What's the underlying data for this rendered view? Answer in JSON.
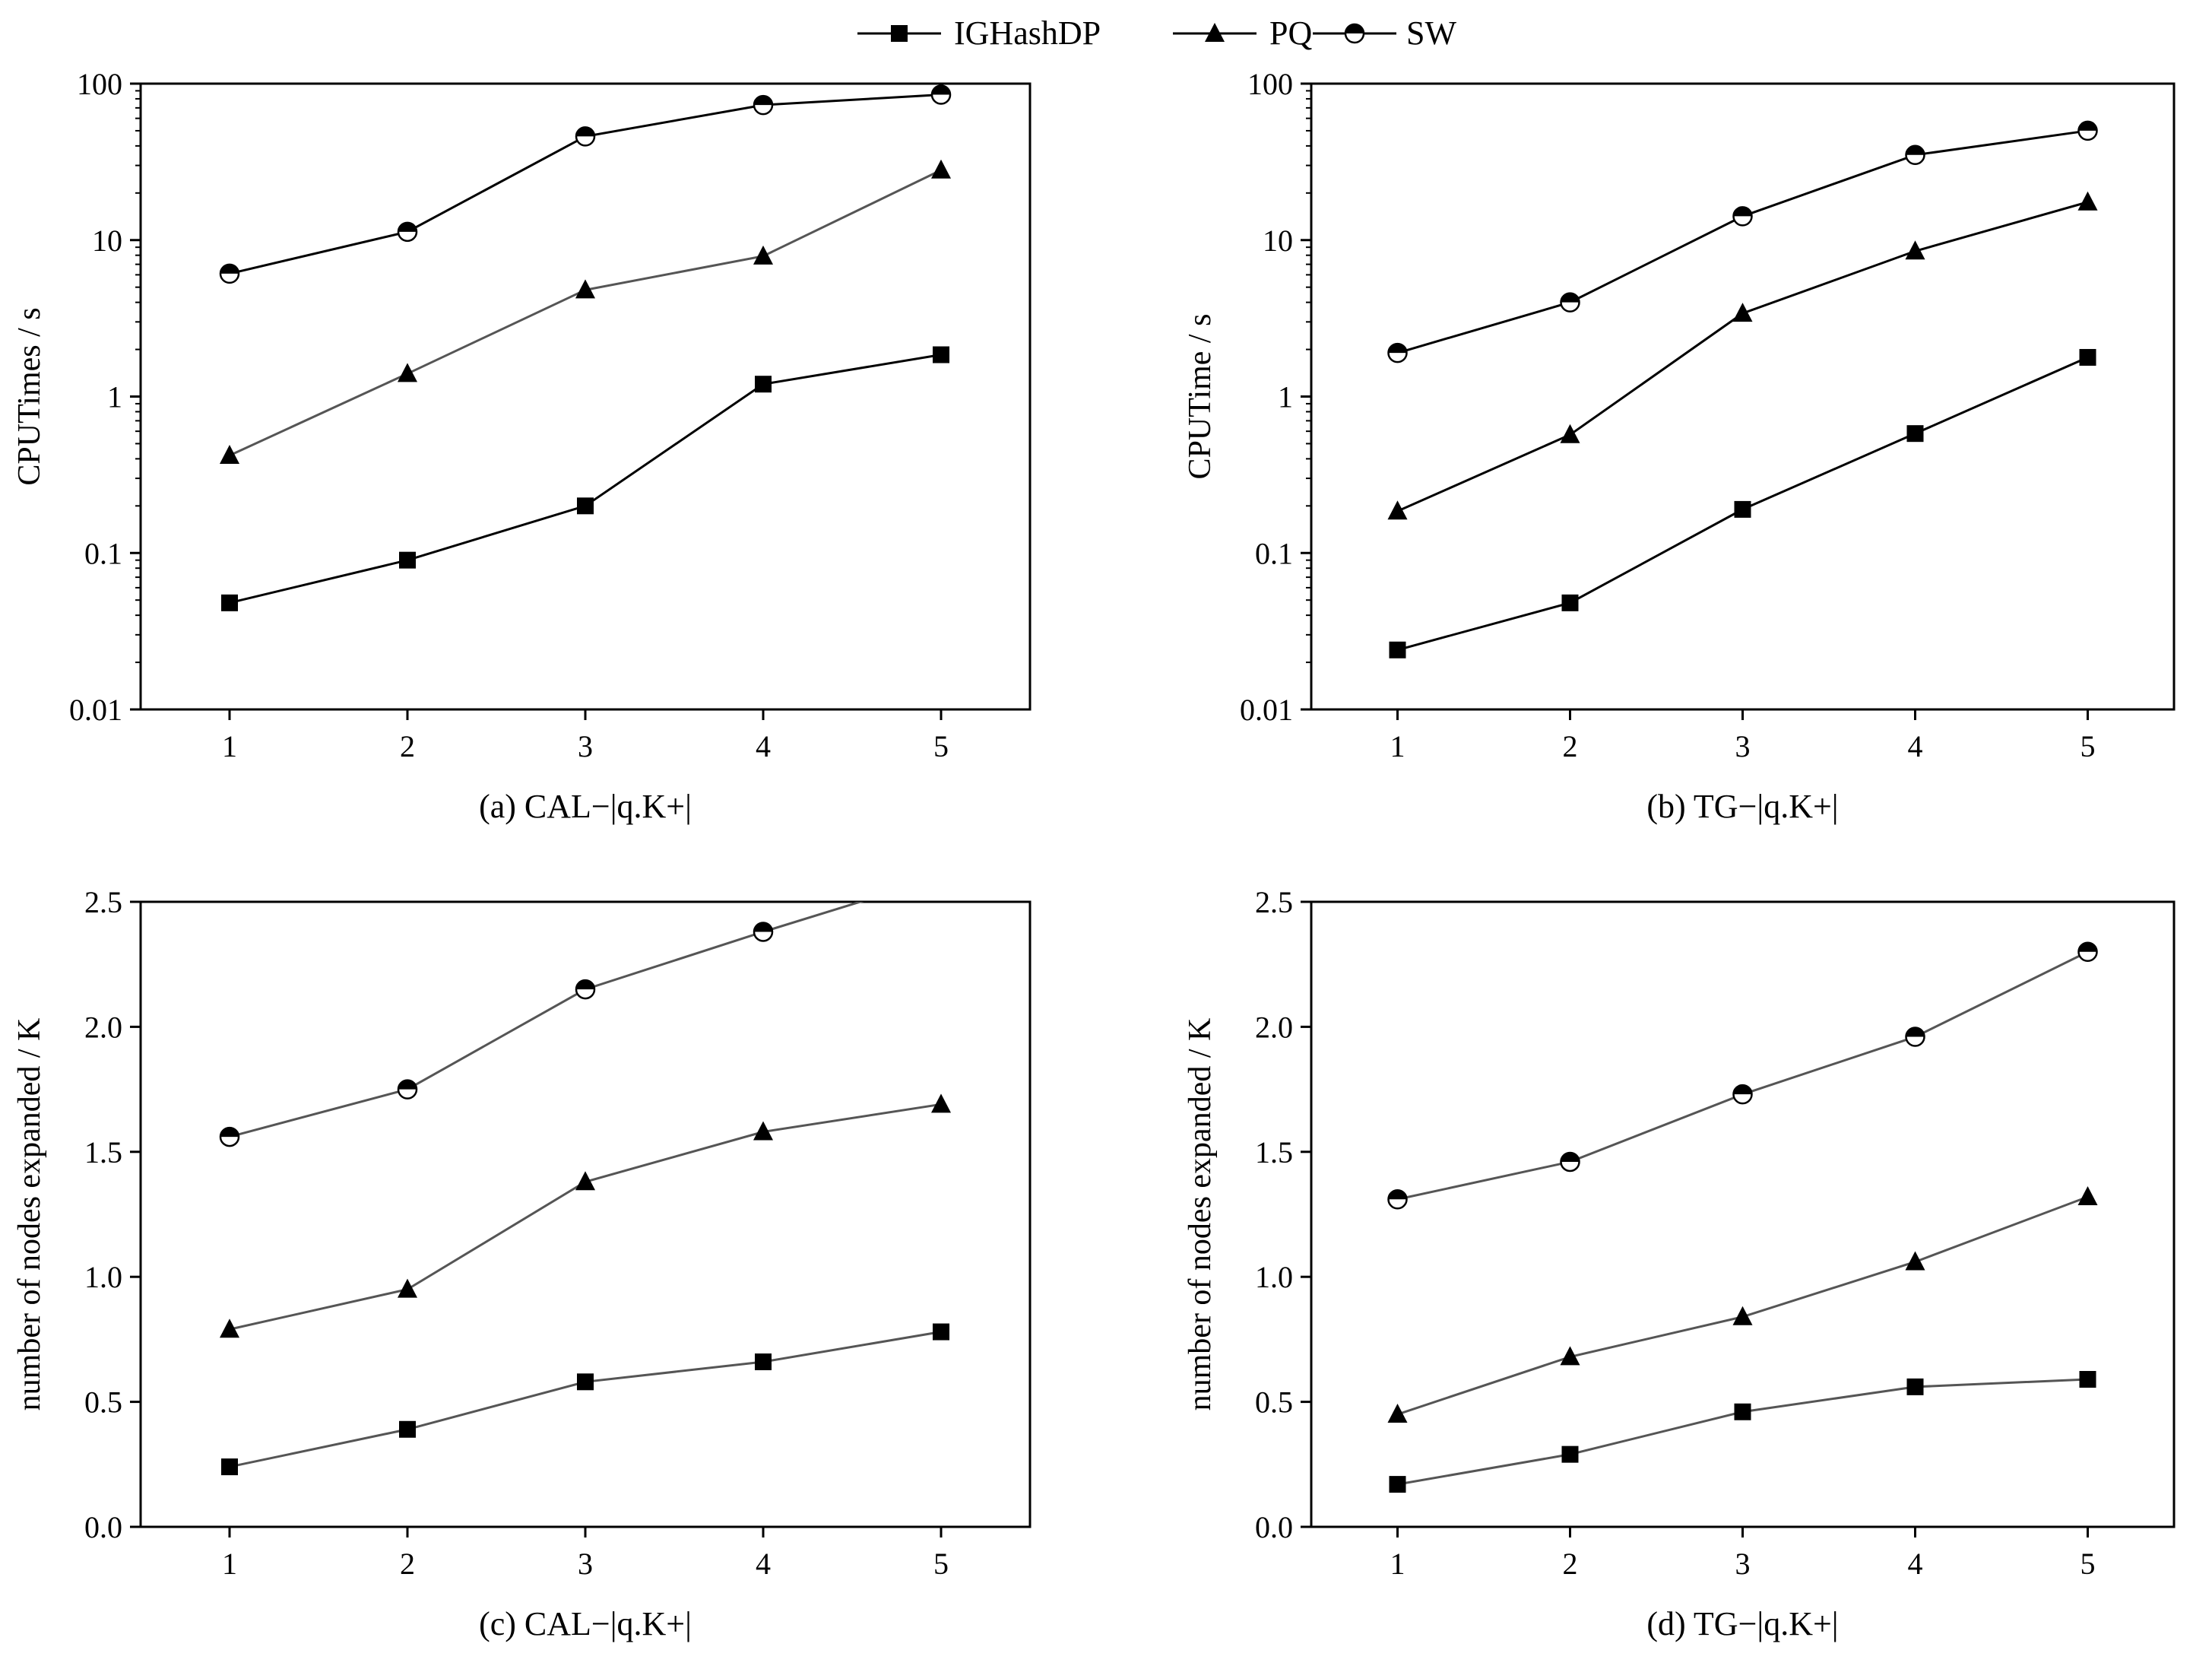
{
  "legend": [
    {
      "name": "IGHashDP",
      "marker": "square"
    },
    {
      "name": "PQ",
      "marker": "triangle"
    },
    {
      "name": "SW",
      "marker": "half-circle"
    }
  ],
  "colors": {
    "ink": "#000000",
    "line_dark": "#000000",
    "line_gray": "#555555",
    "marker_fill": "#000000",
    "background": "#ffffff"
  },
  "chart_data": [
    {
      "id": "a",
      "type": "line",
      "caption": "(a) CAL−|q.K+|",
      "ylabel": "CPUTimes / s",
      "xlabel": "",
      "yscale": "log",
      "ylim": [
        0.01,
        100
      ],
      "y_ticks": [
        0.01,
        0.1,
        1,
        10,
        100
      ],
      "y_tick_labels": [
        "0.01",
        "0.1",
        "1",
        "10",
        "100"
      ],
      "xlim": [
        0.5,
        5.5
      ],
      "x": [
        1,
        2,
        3,
        4,
        5
      ],
      "x_tick_labels": [
        "1",
        "2",
        "3",
        "4",
        "5"
      ],
      "series": [
        {
          "name": "IGHashDP",
          "marker": "square",
          "line": "dark",
          "values": [
            0.048,
            0.09,
            0.2,
            1.2,
            1.85
          ]
        },
        {
          "name": "PQ",
          "marker": "triangle",
          "line": "gray",
          "values": [
            0.42,
            1.4,
            4.8,
            7.9,
            28
          ]
        },
        {
          "name": "SW",
          "marker": "half-circle",
          "line": "dark",
          "values": [
            6.1,
            11.3,
            46,
            73,
            85
          ]
        }
      ]
    },
    {
      "id": "b",
      "type": "line",
      "caption": "(b) TG−|q.K+|",
      "ylabel": "CPUTime / s",
      "xlabel": "",
      "yscale": "log",
      "ylim": [
        0.01,
        100
      ],
      "y_ticks": [
        0.01,
        0.1,
        1,
        10,
        100
      ],
      "y_tick_labels": [
        "0.01",
        "0.1",
        "1",
        "10",
        "100"
      ],
      "xlim": [
        0.5,
        5.5
      ],
      "x": [
        1,
        2,
        3,
        4,
        5
      ],
      "x_tick_labels": [
        "1",
        "2",
        "3",
        "4",
        "5"
      ],
      "series": [
        {
          "name": "IGHashDP",
          "marker": "square",
          "line": "dark",
          "values": [
            0.024,
            0.048,
            0.19,
            0.58,
            1.78
          ]
        },
        {
          "name": "PQ",
          "marker": "triangle",
          "line": "dark",
          "values": [
            0.185,
            0.57,
            3.4,
            8.5,
            17.5
          ]
        },
        {
          "name": "SW",
          "marker": "half-circle",
          "line": "dark",
          "values": [
            1.9,
            4.0,
            14.2,
            35,
            50
          ]
        }
      ]
    },
    {
      "id": "c",
      "type": "line",
      "caption": "(c) CAL−|q.K+|",
      "ylabel": "number of nodes expanded / K",
      "xlabel": "",
      "yscale": "linear",
      "ylim": [
        0.0,
        2.5
      ],
      "y_ticks": [
        0.0,
        0.5,
        1.0,
        1.5,
        2.0,
        2.5
      ],
      "y_tick_labels": [
        "0.0",
        "0.5",
        "1.0",
        "1.5",
        "2.0",
        "2.5"
      ],
      "xlim": [
        0.5,
        5.5
      ],
      "x": [
        1,
        2,
        3,
        4,
        5
      ],
      "x_tick_labels": [
        "1",
        "2",
        "3",
        "4",
        "5"
      ],
      "series": [
        {
          "name": "IGHashDP",
          "marker": "square",
          "line": "gray",
          "values": [
            0.24,
            0.39,
            0.58,
            0.66,
            0.78
          ]
        },
        {
          "name": "PQ",
          "marker": "triangle",
          "line": "gray",
          "values": [
            0.79,
            0.95,
            1.38,
            1.58,
            1.69
          ]
        },
        {
          "name": "SW",
          "marker": "half-circle",
          "line": "gray",
          "values": [
            1.56,
            1.75,
            2.15,
            2.38,
            2.6
          ]
        }
      ]
    },
    {
      "id": "d",
      "type": "line",
      "caption": "(d) TG−|q.K+|",
      "ylabel": "number of nodes expanded / K",
      "xlabel": "",
      "yscale": "linear",
      "ylim": [
        0.0,
        2.5
      ],
      "y_ticks": [
        0.0,
        0.5,
        1.0,
        1.5,
        2.0,
        2.5
      ],
      "y_tick_labels": [
        "0.0",
        "0.5",
        "1.0",
        "1.5",
        "2.0",
        "2.5"
      ],
      "xlim": [
        0.5,
        5.5
      ],
      "x": [
        1,
        2,
        3,
        4,
        5
      ],
      "x_tick_labels": [
        "1",
        "2",
        "3",
        "4",
        "5"
      ],
      "series": [
        {
          "name": "IGHashDP",
          "marker": "square",
          "line": "gray",
          "values": [
            0.17,
            0.29,
            0.46,
            0.56,
            0.59
          ]
        },
        {
          "name": "PQ",
          "marker": "triangle",
          "line": "gray",
          "values": [
            0.45,
            0.68,
            0.84,
            1.06,
            1.32
          ]
        },
        {
          "name": "SW",
          "marker": "half-circle",
          "line": "gray",
          "values": [
            1.31,
            1.46,
            1.73,
            1.96,
            2.3
          ]
        }
      ]
    }
  ]
}
